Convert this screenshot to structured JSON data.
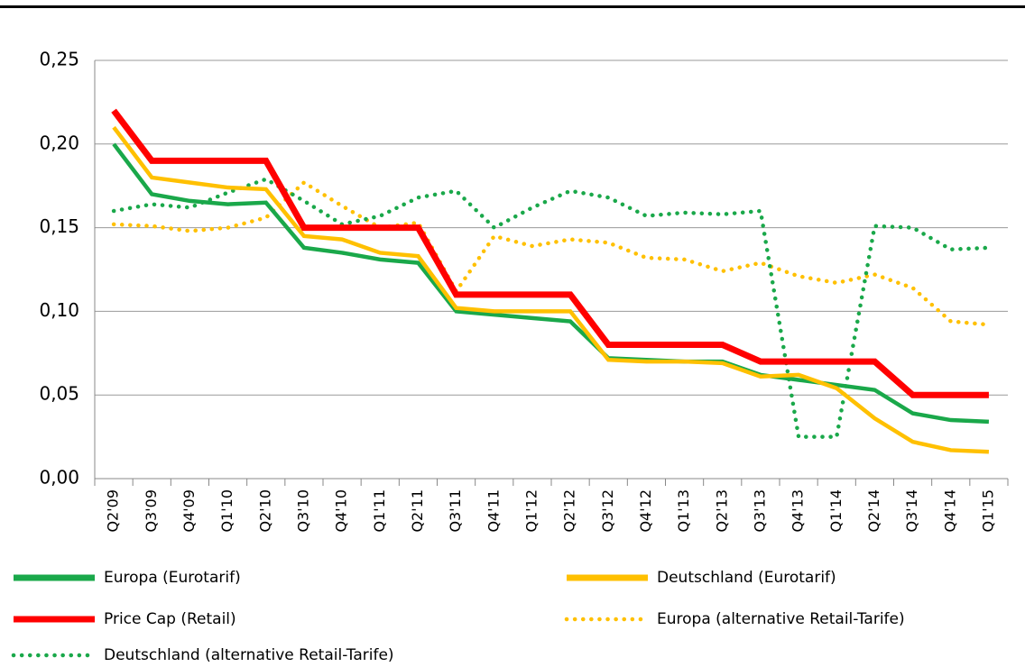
{
  "chart_data": {
    "type": "line",
    "categories": [
      "Q2'09",
      "Q3'09",
      "Q4'09",
      "Q1'10",
      "Q2'10",
      "Q3'10",
      "Q4'10",
      "Q1'11",
      "Q2'11",
      "Q3'11",
      "Q4'11",
      "Q1'12",
      "Q2'12",
      "Q3'12",
      "Q4'12",
      "Q1'13",
      "Q2'13",
      "Q3'13",
      "Q4'13",
      "Q1'14",
      "Q2'14",
      "Q3'14",
      "Q4'14",
      "Q1'15"
    ],
    "series": [
      {
        "name": "Europa (Eurotarif)",
        "color": "#1aa84a",
        "style": "solid",
        "values": [
          0.2,
          0.17,
          0.166,
          0.164,
          0.165,
          0.138,
          0.135,
          0.131,
          0.129,
          0.1,
          0.098,
          0.096,
          0.094,
          0.072,
          0.071,
          0.07,
          0.07,
          0.062,
          0.059,
          0.056,
          0.053,
          0.039,
          0.035,
          0.034
        ]
      },
      {
        "name": "Deutschland (Eurotarif)",
        "color": "#ffc000",
        "style": "solid",
        "values": [
          0.21,
          0.18,
          0.177,
          0.174,
          0.173,
          0.145,
          0.143,
          0.135,
          0.133,
          0.102,
          0.1,
          0.1,
          0.1,
          0.071,
          0.07,
          0.07,
          0.069,
          0.061,
          0.062,
          0.054,
          0.036,
          0.022,
          0.017,
          0.016
        ]
      },
      {
        "name": "Price Cap (Retail)",
        "color": "#ff0000",
        "style": "solid",
        "values": [
          0.22,
          0.19,
          0.19,
          0.19,
          0.19,
          0.15,
          0.15,
          0.15,
          0.15,
          0.11,
          0.11,
          0.11,
          0.11,
          0.08,
          0.08,
          0.08,
          0.08,
          0.07,
          0.07,
          0.07,
          0.07,
          0.05,
          0.05,
          0.05
        ]
      },
      {
        "name": "Europa (alternative Retail-Tarife)",
        "color": "#ffc000",
        "style": "dotted",
        "values": [
          0.152,
          0.151,
          0.148,
          0.15,
          0.156,
          0.177,
          0.163,
          0.15,
          0.153,
          0.112,
          0.145,
          0.139,
          0.143,
          0.141,
          0.132,
          0.131,
          0.124,
          0.129,
          0.121,
          0.117,
          0.122,
          0.114,
          0.094,
          0.092
        ]
      },
      {
        "name": "Deutschland (alternative Retail-Tarife)",
        "color": "#1aa84a",
        "style": "dotted",
        "values": [
          0.16,
          0.164,
          0.162,
          0.171,
          0.179,
          0.166,
          0.152,
          0.157,
          0.168,
          0.172,
          0.15,
          0.162,
          0.172,
          0.168,
          0.157,
          0.159,
          0.158,
          0.16,
          0.025,
          0.025,
          0.151,
          0.15,
          0.137,
          0.138
        ]
      }
    ],
    "ylim": [
      0,
      0.25
    ],
    "yticks": [
      {
        "value": 0,
        "label": "0,00"
      },
      {
        "value": 0.05,
        "label": "0,05"
      },
      {
        "value": 0.1,
        "label": "0,10"
      },
      {
        "value": 0.15,
        "label": "0,15"
      },
      {
        "value": 0.2,
        "label": "0,20"
      },
      {
        "value": 0.25,
        "label": "0,25"
      }
    ],
    "grid": true
  }
}
